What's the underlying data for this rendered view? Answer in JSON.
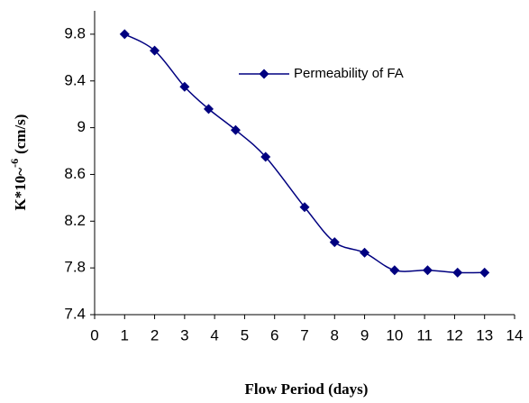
{
  "chart_data": {
    "type": "line",
    "xlabel": "Flow Period (days)",
    "ylabel": {
      "base": "K*10~",
      "sup": "-6",
      "unit": "(cm/s)"
    },
    "x": [
      1,
      2,
      3,
      3.8,
      4.7,
      5.7,
      7,
      8,
      9,
      10,
      11.1,
      12.1,
      13
    ],
    "series": [
      {
        "name": "Permeability of FA",
        "color": "#000080",
        "values": [
          9.8,
          9.66,
          9.35,
          9.16,
          8.98,
          8.75,
          8.32,
          8.02,
          7.93,
          7.78,
          7.78,
          7.76,
          7.76
        ]
      }
    ],
    "xlim": [
      0,
      14
    ],
    "xticks": [
      0,
      1,
      2,
      3,
      4,
      5,
      6,
      7,
      8,
      9,
      10,
      11,
      12,
      13,
      14
    ],
    "ylim": [
      7.4,
      10
    ],
    "yticks": [
      7.4,
      7.8,
      8.2,
      8.6,
      9,
      9.4,
      9.8
    ],
    "smooth": true,
    "grid": false
  }
}
